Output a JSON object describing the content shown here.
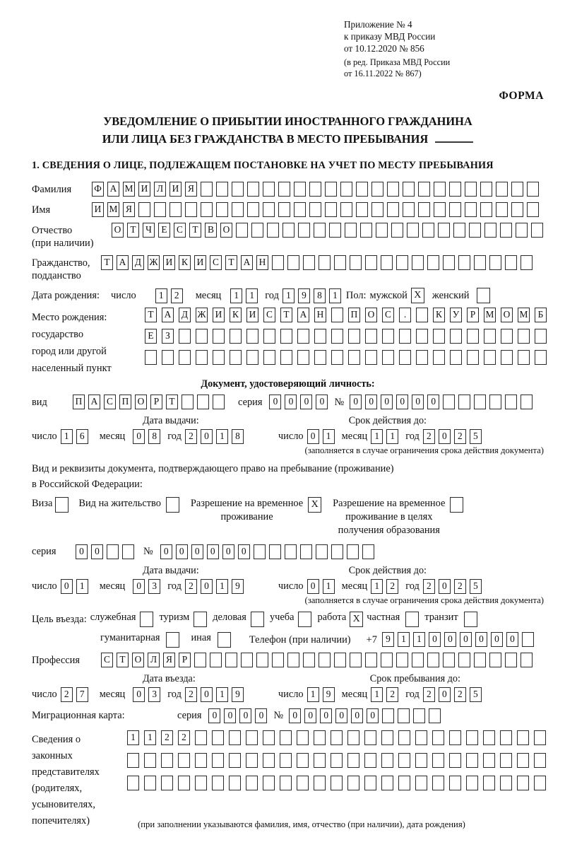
{
  "date_labels": {
    "day": "число",
    "month": "месяц",
    "year": "год"
  },
  "header": {
    "ref_lines": [
      "Приложение № 4",
      "к приказу МВД России",
      "от 10.12.2020 № 856"
    ],
    "ed_lines": [
      "(в ред. Приказа МВД России",
      "от 16.11.2022 № 867)"
    ],
    "forma": "ФОРМА"
  },
  "title": {
    "line1": "УВЕДОМЛЕНИЕ О ПРИБЫТИИ ИНОСТРАННОГО ГРАЖДАНИНА",
    "line2": "ИЛИ ЛИЦА БЕЗ ГРАЖДАНСТВА В МЕСТО ПРЕБЫВАНИЯ"
  },
  "section1_heading": "1. СВЕДЕНИЯ О ЛИЦЕ, ПОДЛЕЖАЩЕМ ПОСТАНОВКЕ НА УЧЕТ ПО МЕСТУ ПРЕБЫВАНИЯ",
  "fields": {
    "surname": {
      "label": "Фамилия",
      "value": "ФАМИЛИЯ"
    },
    "firstname": {
      "label": "Имя",
      "value": "ИМЯ"
    },
    "patronymic": {
      "label1": "Отчество",
      "label2": "(при наличии)",
      "value": "ОТЧЕСТВО"
    },
    "citizenship": {
      "label1": "Гражданство,",
      "label2": "подданство",
      "value": "ТАДЖИКИСТАН"
    }
  },
  "birth": {
    "label": "Дата рождения:",
    "day": "12",
    "month": "11",
    "year": "1981",
    "gender_label": "Пол:",
    "male_label": "мужской",
    "male": "X",
    "female_label": "женский",
    "female": ""
  },
  "birthplace": {
    "labels": [
      "Место рождения:",
      "государство",
      "город или другой",
      "населенный пункт"
    ],
    "row1": "ТАДЖИКИСТАН ПОС. КУРМОМБ",
    "row2": "ЕЗ",
    "row3": ""
  },
  "identity_doc": {
    "heading": "Документ, удостоверяющий личность:",
    "type_label": "вид",
    "type": "ПАСПОРТ",
    "series_label": "серия",
    "series": "0000",
    "number_label": "№",
    "number": "000000",
    "issue": {
      "heading": "Дата выдачи:",
      "day": "16",
      "month": "08",
      "year": "2018"
    },
    "expiry": {
      "heading": "Срок действия до:",
      "day": "01",
      "month": "11",
      "year": "2025"
    },
    "note": "(заполняется в случае ограничения срока действия документа)"
  },
  "residence_doc": {
    "intro1": "Вид и реквизиты документа, подтверждающего право на пребывание (проживание)",
    "intro2": "в Российской Федерации:",
    "options": [
      {
        "label": "Виза",
        "value": ""
      },
      {
        "label": "Вид на жительство",
        "value": ""
      },
      {
        "label1": "Разрешение на временное",
        "label2": "проживание",
        "value": "X"
      },
      {
        "label1": "Разрешение на временное",
        "label2": "проживание в целях",
        "label3": "получения образования",
        "value": ""
      }
    ],
    "series_label": "серия",
    "series": "00",
    "number_label": "№",
    "number": "000000",
    "issue": {
      "heading": "Дата выдачи:",
      "day": "01",
      "month": "03",
      "year": "2019"
    },
    "expiry": {
      "heading": "Срок действия до:",
      "day": "01",
      "month": "12",
      "year": "2025"
    },
    "note": "(заполняется в случае ограничения срока действия документа)"
  },
  "purpose": {
    "label": "Цель въезда:",
    "options": [
      {
        "label": "служебная",
        "value": ""
      },
      {
        "label": "туризм",
        "value": ""
      },
      {
        "label": "деловая",
        "value": ""
      },
      {
        "label": "учеба",
        "value": ""
      },
      {
        "label": "работа",
        "value": "X"
      },
      {
        "label": "частная",
        "value": ""
      },
      {
        "label": "транзит",
        "value": ""
      },
      {
        "label": "гуманитарная",
        "value": ""
      },
      {
        "label": "иная",
        "value": ""
      }
    ],
    "phone_label": "Телефон (при наличии)",
    "phone_prefix": "+7",
    "phone": "911000000"
  },
  "profession": {
    "label": "Профессия",
    "value": "СТОЛЯР"
  },
  "entry": {
    "issue": {
      "heading": "Дата въезда:",
      "day": "27",
      "month": "03",
      "year": "2019"
    },
    "stay": {
      "heading": "Срок пребывания до:",
      "day": "19",
      "month": "12",
      "year": "2025"
    }
  },
  "migration_card": {
    "label": "Миграционная карта:",
    "series_label": "серия",
    "series": "0000",
    "number_label": "№",
    "number": "000000"
  },
  "representatives": {
    "labels": [
      "Сведения о",
      "законных",
      "представителях",
      "(родителях,",
      "усыновителях,",
      "попечителях)"
    ],
    "row1": "1122",
    "row2": "",
    "row3": "",
    "note": "(при заполнении указываются фамилия, имя, отчество (при наличии), дата рождения)"
  }
}
